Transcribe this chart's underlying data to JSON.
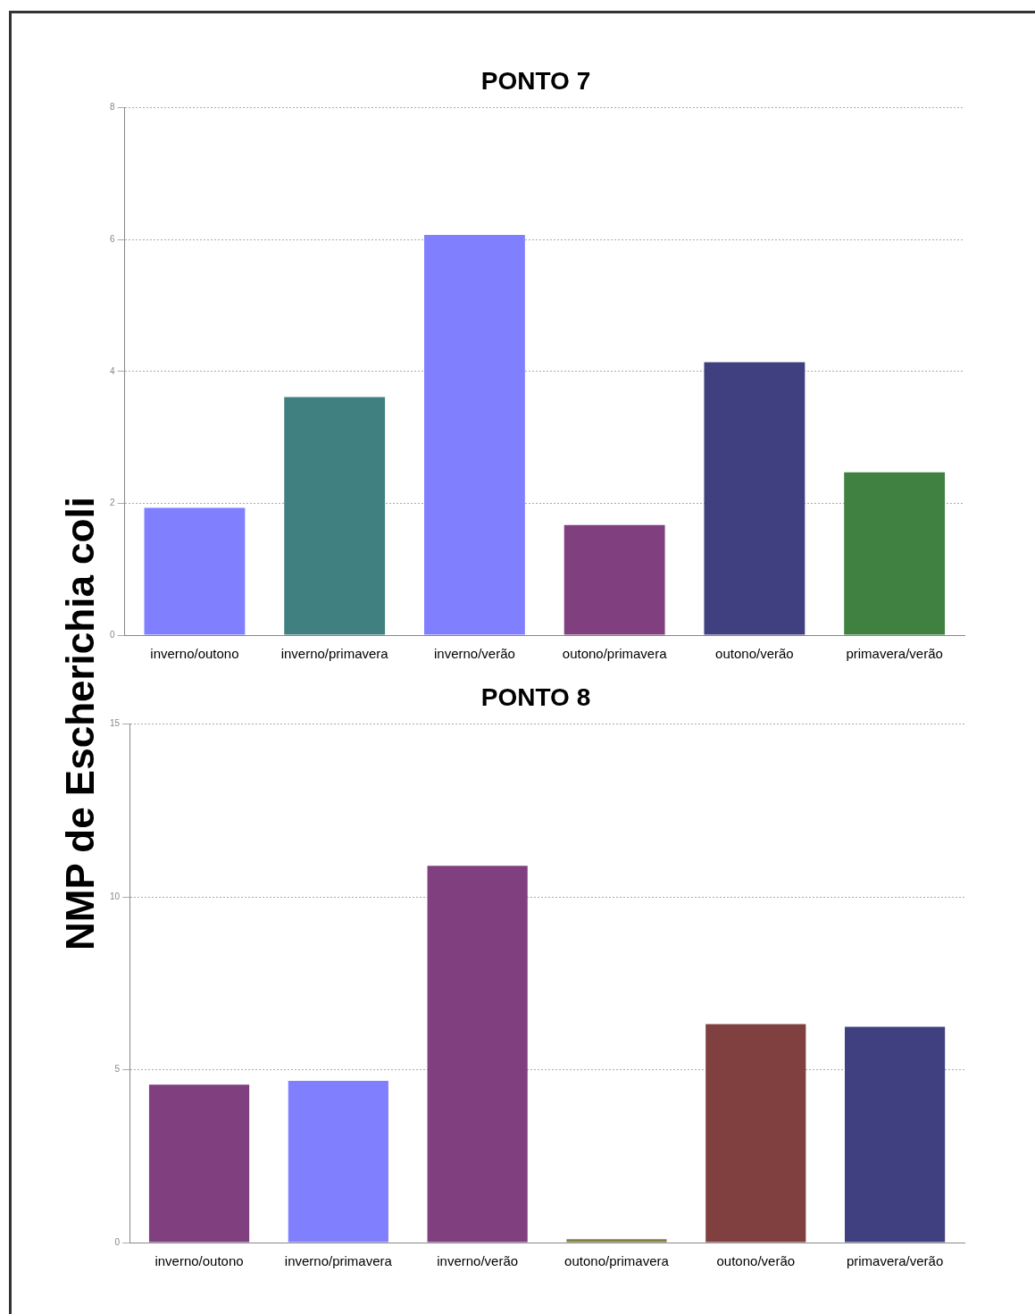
{
  "chart_data": [
    {
      "type": "bar",
      "title": "PONTO 7",
      "ylabel": "NMP de Escherichia coli",
      "categories": [
        "inverno/outono",
        "inverno/primavera",
        "inverno/verão",
        "outono/primavera",
        "outono/verão",
        "primavera/verão"
      ],
      "values": [
        1.93,
        3.61,
        6.07,
        1.67,
        4.14,
        2.47
      ],
      "colors": [
        "#8080ff",
        "#408080",
        "#8080ff",
        "#804080",
        "#404080",
        "#408040"
      ],
      "ylim": [
        0,
        8
      ],
      "yticks": [
        0,
        2,
        4,
        6,
        8
      ],
      "grid": "y",
      "legend": false
    },
    {
      "type": "bar",
      "title": "PONTO 8",
      "categories": [
        "inverno/outono",
        "inverno/primavera",
        "inverno/verão",
        "outono/primavera",
        "outono/verão",
        "primavera/verão"
      ],
      "values": [
        4.57,
        4.68,
        10.9,
        0.1,
        6.32,
        6.24
      ],
      "colors": [
        "#804080",
        "#8080ff",
        "#804080",
        "#808040",
        "#804040",
        "#404080"
      ],
      "ylim": [
        0,
        15
      ],
      "yticks": [
        0,
        5,
        10,
        15
      ],
      "grid": "y",
      "legend": false
    }
  ]
}
